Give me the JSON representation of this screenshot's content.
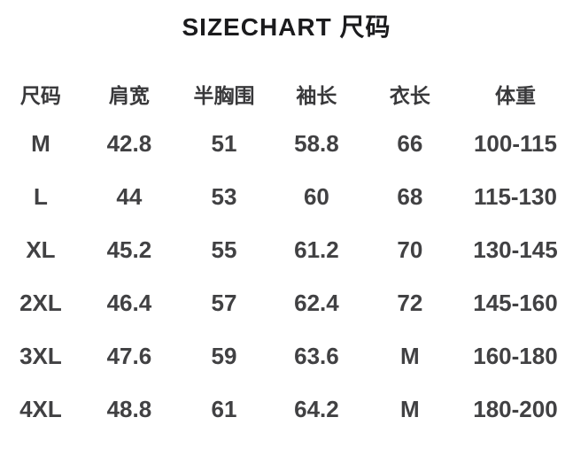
{
  "title": "SIZECHART  尺码",
  "chart_data": {
    "type": "table",
    "title": "SIZECHART 尺码",
    "columns": [
      "尺码",
      "肩宽",
      "半胸围",
      "袖长",
      "衣长",
      "体重"
    ],
    "rows": [
      [
        "M",
        "42.8",
        "51",
        "58.8",
        "66",
        "100-115"
      ],
      [
        "L",
        "44",
        "53",
        "60",
        "68",
        "115-130"
      ],
      [
        "XL",
        "45.2",
        "55",
        "61.2",
        "70",
        "130-145"
      ],
      [
        "2XL",
        "46.4",
        "57",
        "62.4",
        "72",
        "145-160"
      ],
      [
        "3XL",
        "47.6",
        "59",
        "63.6",
        "M",
        "160-180"
      ],
      [
        "4XL",
        "48.8",
        "61",
        "64.2",
        "M",
        "180-200"
      ]
    ]
  },
  "colors": {
    "title_text": "#1b1b1d",
    "header_text": "#39393b",
    "cell_text": "#414143",
    "background": "#ffffff"
  }
}
